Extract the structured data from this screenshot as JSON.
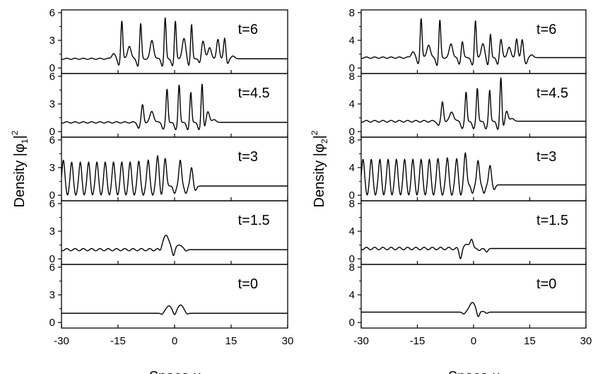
{
  "chart_data": [
    {
      "type": "line",
      "id": "phi1",
      "xlabel": "Space x",
      "xlabel_prefix": "Space ",
      "xlabel_var": "x",
      "ylabel": "Density |φ1|²",
      "ylabel_prefix": "Density |φ",
      "ylabel_sub": "1",
      "ylabel_suffix": "|",
      "ylabel_sup": "2",
      "xlim": [
        -30,
        30
      ],
      "xticks": [
        -30,
        -15,
        0,
        15,
        30
      ],
      "xtick_labels": [
        "-30",
        "-15",
        "0",
        "15",
        "30"
      ],
      "panels": [
        {
          "label": "t=6",
          "ylim": [
            -0.6,
            6.3
          ],
          "yticks": [
            0,
            3,
            6
          ],
          "ytick_labels": [
            "0",
            "3",
            "6"
          ],
          "background": 1.0,
          "ripple": 0.06,
          "peaks": [
            [
              -16.2,
              1.6,
              0.45
            ],
            [
              -14.0,
              5.2,
              0.25
            ],
            [
              -12.0,
              2.4,
              0.45
            ],
            [
              -9.0,
              4.9,
              0.25
            ],
            [
              -6.0,
              3.0,
              0.45
            ],
            [
              -2.5,
              5.5,
              0.25
            ],
            [
              0.2,
              5.2,
              0.25
            ],
            [
              2.5,
              3.2,
              0.45
            ],
            [
              4.5,
              4.8,
              0.25
            ],
            [
              7.5,
              3.0,
              0.45
            ],
            [
              9.3,
              2.2,
              0.45
            ],
            [
              11.5,
              3.1,
              0.35
            ],
            [
              13.3,
              3.3,
              0.3
            ],
            [
              15.5,
              1.3,
              0.45
            ]
          ],
          "dips": [
            [
              -14.8,
              0.3
            ],
            [
              -9.7,
              0.2
            ],
            [
              -3.2,
              0.2
            ],
            [
              -0.5,
              0.2
            ],
            [
              3.8,
              0.2
            ],
            [
              6.8,
              0.2
            ],
            [
              14.0,
              0.4
            ]
          ]
        },
        {
          "label": "t=4.5",
          "ylim": [
            -0.6,
            6.3
          ],
          "yticks": [
            0,
            3,
            6
          ],
          "ytick_labels": [
            "0",
            "3",
            "6"
          ],
          "background": 1.0,
          "ripple": 0.07,
          "peaks": [
            [
              -8.5,
              2.9,
              0.3
            ],
            [
              -6.0,
              2.2,
              0.5
            ],
            [
              -2.0,
              4.6,
              0.25
            ],
            [
              1.2,
              5.1,
              0.25
            ],
            [
              4.3,
              4.3,
              0.25
            ],
            [
              7.3,
              5.3,
              0.25
            ],
            [
              8.8,
              2.2,
              0.45
            ],
            [
              10.5,
              1.3,
              0.5
            ]
          ],
          "dips": [
            [
              -9.5,
              0.4
            ],
            [
              -3.0,
              0.3
            ],
            [
              0.3,
              0.2
            ],
            [
              3.5,
              0.2
            ],
            [
              6.5,
              0.2
            ],
            [
              8.0,
              0.3
            ]
          ]
        },
        {
          "label": "t=3",
          "ylim": [
            -0.6,
            6.3
          ],
          "yticks": [
            0,
            3,
            6
          ],
          "ytick_labels": [
            "0",
            "3",
            "6"
          ],
          "background": 1.0,
          "ripple": 0.0,
          "peaks": [
            [
              -29.5,
              3.8,
              0.35
            ],
            [
              -27.3,
              3.6,
              0.35
            ],
            [
              -25.0,
              3.6,
              0.35
            ],
            [
              -22.8,
              3.6,
              0.35
            ],
            [
              -20.6,
              3.6,
              0.35
            ],
            [
              -18.4,
              3.6,
              0.35
            ],
            [
              -16.2,
              3.6,
              0.35
            ],
            [
              -14.0,
              3.6,
              0.35
            ],
            [
              -11.8,
              3.6,
              0.35
            ],
            [
              -9.5,
              3.7,
              0.35
            ],
            [
              -7.0,
              3.8,
              0.35
            ],
            [
              -4.5,
              4.3,
              0.35
            ],
            [
              -2.5,
              4.0,
              0.35
            ],
            [
              1.5,
              3.8,
              0.35
            ],
            [
              4.5,
              3.0,
              0.35
            ]
          ],
          "dips": [
            [
              -28.4,
              0.0
            ],
            [
              -26.2,
              0.0
            ],
            [
              -24.0,
              0.0
            ],
            [
              -21.8,
              0.0
            ],
            [
              -19.5,
              0.0
            ],
            [
              -17.3,
              0.0
            ],
            [
              -15.1,
              0.0
            ],
            [
              -12.9,
              0.0
            ],
            [
              -10.7,
              0.0
            ],
            [
              -8.3,
              0.0
            ],
            [
              -5.8,
              0.0
            ],
            [
              -3.5,
              0.0
            ],
            [
              0.0,
              0.2
            ],
            [
              3.0,
              0.2
            ],
            [
              5.5,
              0.5
            ]
          ]
        },
        {
          "label": "t=1.5",
          "ylim": [
            -0.6,
            6.3
          ],
          "yticks": [
            0,
            3,
            6
          ],
          "ytick_labels": [
            "0",
            "3",
            "6"
          ],
          "background": 1.0,
          "ripple": 0.12,
          "peaks": [
            [
              -2.3,
              2.5,
              0.9
            ],
            [
              1.2,
              1.5,
              0.9
            ]
          ],
          "dips": [
            [
              -3.8,
              0.6
            ],
            [
              -0.3,
              0.1
            ],
            [
              3.0,
              0.8
            ]
          ]
        },
        {
          "label": "t=0",
          "ylim": [
            -0.6,
            6.3
          ],
          "yticks": [
            0,
            3,
            6
          ],
          "ytick_labels": [
            "0",
            "3",
            "6"
          ],
          "background": 1.0,
          "ripple": 0.0,
          "peaks": [
            [
              -1.5,
              1.8,
              0.8
            ],
            [
              1.6,
              1.9,
              0.8
            ]
          ],
          "dips": [
            [
              -3.3,
              0.85
            ],
            [
              0.0,
              0.6
            ],
            [
              3.3,
              0.85
            ]
          ]
        }
      ]
    },
    {
      "type": "line",
      "id": "phi2",
      "xlabel": "Space x",
      "xlabel_prefix": "Space ",
      "xlabel_var": "x",
      "ylabel": "Density |φ2|²",
      "ylabel_prefix": "Density |φ",
      "ylabel_sub": "2",
      "ylabel_suffix": "|",
      "ylabel_sup": "2",
      "xlim": [
        -30,
        30
      ],
      "xticks": [
        -30,
        -15,
        0,
        15,
        30
      ],
      "xtick_labels": [
        "-30",
        "-15",
        "0",
        "15",
        "30"
      ],
      "panels": [
        {
          "label": "t=6",
          "ylim": [
            -0.8,
            8.4
          ],
          "yticks": [
            0,
            4,
            8
          ],
          "ytick_labels": [
            "0",
            "4",
            "8"
          ],
          "background": 1.5,
          "ripple": 0.1,
          "peaks": [
            [
              -16.2,
              2.4,
              0.45
            ],
            [
              -14.0,
              7.3,
              0.25
            ],
            [
              -12.0,
              3.4,
              0.45
            ],
            [
              -9.0,
              7.0,
              0.25
            ],
            [
              -6.0,
              3.5,
              0.45
            ],
            [
              -3.0,
              3.9,
              0.3
            ],
            [
              0.5,
              6.9,
              0.25
            ],
            [
              2.5,
              3.5,
              0.45
            ],
            [
              4.5,
              5.0,
              0.25
            ],
            [
              7.3,
              4.2,
              0.35
            ],
            [
              9.5,
              3.0,
              0.45
            ],
            [
              11.5,
              4.2,
              0.3
            ],
            [
              13.0,
              4.1,
              0.3
            ],
            [
              15.5,
              1.9,
              0.45
            ]
          ],
          "dips": [
            [
              -14.8,
              0.6
            ],
            [
              -9.7,
              0.4
            ],
            [
              -3.8,
              0.5
            ],
            [
              -0.3,
              0.4
            ],
            [
              3.8,
              0.4
            ],
            [
              6.5,
              0.4
            ],
            [
              14.0,
              0.6
            ]
          ]
        },
        {
          "label": "t=4.5",
          "ylim": [
            -0.8,
            8.4
          ],
          "yticks": [
            0,
            4,
            8
          ],
          "ytick_labels": [
            "0",
            "4",
            "8"
          ],
          "background": 1.5,
          "ripple": 0.12,
          "peaks": [
            [
              -8.3,
              4.3,
              0.3
            ],
            [
              -5.8,
              2.9,
              0.5
            ],
            [
              -2.0,
              5.7,
              0.25
            ],
            [
              1.0,
              6.3,
              0.25
            ],
            [
              4.3,
              6.0,
              0.25
            ],
            [
              7.3,
              8.0,
              0.25
            ],
            [
              8.8,
              3.0,
              0.4
            ],
            [
              10.3,
              1.9,
              0.5
            ]
          ],
          "dips": [
            [
              -9.3,
              0.9
            ],
            [
              -3.0,
              0.5
            ],
            [
              0.0,
              0.4
            ],
            [
              3.3,
              0.4
            ],
            [
              6.5,
              0.3
            ],
            [
              8.0,
              0.6
            ]
          ]
        },
        {
          "label": "t=3",
          "ylim": [
            -0.8,
            8.4
          ],
          "yticks": [
            0,
            4,
            8
          ],
          "ytick_labels": [
            "0",
            "4",
            "8"
          ],
          "background": 1.5,
          "ripple": 0.0,
          "peaks": [
            [
              -29.5,
              5.2,
              0.35
            ],
            [
              -27.3,
              5.2,
              0.35
            ],
            [
              -25.0,
              5.2,
              0.35
            ],
            [
              -22.8,
              5.2,
              0.35
            ],
            [
              -20.6,
              5.2,
              0.35
            ],
            [
              -18.4,
              5.2,
              0.35
            ],
            [
              -16.2,
              5.2,
              0.35
            ],
            [
              -14.0,
              5.2,
              0.35
            ],
            [
              -11.8,
              5.2,
              0.35
            ],
            [
              -9.5,
              5.3,
              0.35
            ],
            [
              -7.0,
              5.4,
              0.35
            ],
            [
              -4.5,
              5.3,
              0.35
            ],
            [
              -2.2,
              6.1,
              0.35
            ],
            [
              1.2,
              5.0,
              0.35
            ],
            [
              4.4,
              4.3,
              0.35
            ]
          ],
          "dips": [
            [
              -28.4,
              0.0
            ],
            [
              -26.2,
              0.0
            ],
            [
              -24.0,
              0.0
            ],
            [
              -21.8,
              0.0
            ],
            [
              -19.5,
              0.0
            ],
            [
              -17.3,
              0.0
            ],
            [
              -15.1,
              0.0
            ],
            [
              -12.9,
              0.0
            ],
            [
              -10.7,
              0.0
            ],
            [
              -8.3,
              0.0
            ],
            [
              -5.8,
              0.0
            ],
            [
              -3.4,
              0.0
            ],
            [
              -0.3,
              0.3
            ],
            [
              2.8,
              0.3
            ],
            [
              5.5,
              0.8
            ]
          ]
        },
        {
          "label": "t=1.5",
          "ylim": [
            -0.8,
            8.4
          ],
          "yticks": [
            0,
            4,
            8
          ],
          "ytick_labels": [
            "0",
            "4",
            "8"
          ],
          "background": 1.5,
          "ripple": 0.18,
          "peaks": [
            [
              -1.5,
              2.1,
              0.9
            ],
            [
              2.4,
              1.5,
              0.9
            ]
          ],
          "dips": [
            [
              -3.5,
              0.1
            ],
            [
              -0.5,
              2.5
            ],
            [
              1.5,
              1.2
            ],
            [
              3.5,
              1.0
            ]
          ]
        },
        {
          "label": "t=0",
          "ylim": [
            -0.8,
            8.4
          ],
          "yticks": [
            0,
            4,
            8
          ],
          "ytick_labels": [
            "0",
            "4",
            "8"
          ],
          "background": 1.5,
          "ripple": 0.0,
          "peaks": [
            [
              -0.3,
              2.9,
              0.8
            ],
            [
              2.4,
              1.6,
              0.8
            ]
          ],
          "dips": [
            [
              -2.6,
              1.2
            ],
            [
              1.2,
              0.6
            ],
            [
              3.5,
              1.3
            ]
          ]
        }
      ]
    }
  ]
}
